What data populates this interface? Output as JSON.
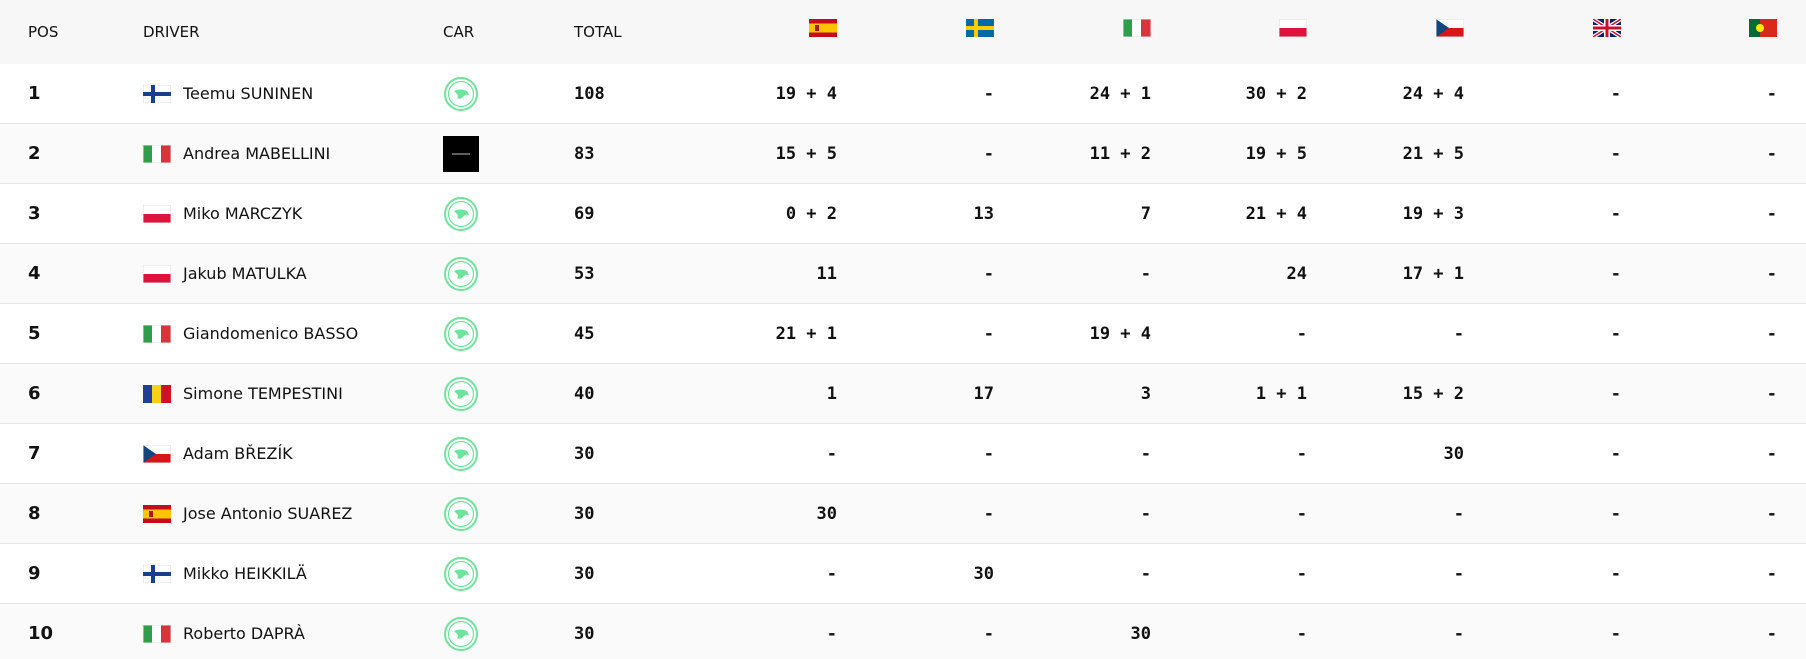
{
  "table": {
    "header": [
      "POS",
      "DRIVER",
      "CAR",
      "TOTAL"
    ],
    "rows": [
      {
        "pos": 1,
        "driver": "Teemu SUNINEN",
        "total": 108,
        "results": [
          "19 + 4",
          "-",
          "24 + 1",
          "30 + 2",
          "24 + 4",
          "-",
          "-"
        ]
      },
      {
        "pos": 2,
        "driver": "Andrea MABELLINI",
        "total": 83,
        "results": [
          "15 + 5",
          "-",
          "11 + 2",
          "19 + 5",
          "21 + 5",
          "-",
          "-"
        ]
      },
      {
        "pos": 3,
        "driver": "Miko MARCZYK",
        "total": 69,
        "results": [
          "0 + 2",
          "13",
          "7",
          "21 + 4",
          "19 + 3",
          "-",
          "-"
        ]
      },
      {
        "pos": 4,
        "driver": "Jakub MATULKA",
        "total": 53,
        "results": [
          "11",
          "-",
          "-",
          "24",
          "17 + 1",
          "-",
          "-"
        ]
      },
      {
        "pos": 5,
        "driver": "Giandomenico BASSO",
        "total": 45,
        "results": [
          "21 + 1",
          "-",
          "19 + 4",
          "-",
          "-",
          "-",
          "-"
        ]
      },
      {
        "pos": 6,
        "driver": "Simone TEMPESTINI",
        "total": 40,
        "results": [
          "1",
          "17",
          "3",
          "1 + 1",
          "15 + 2",
          "-",
          "-"
        ]
      },
      {
        "pos": 7,
        "driver": "Adam BŘEZÍK",
        "total": 30,
        "results": [
          "-",
          "-",
          "-",
          "-",
          "30",
          "-",
          "-"
        ]
      },
      {
        "pos": 8,
        "driver": "Jose Antonio SUAREZ",
        "total": 30,
        "results": [
          "30",
          "-",
          "-",
          "-",
          "-",
          "-",
          "-"
        ]
      },
      {
        "pos": 9,
        "driver": "Mikko HEIKKILÄ",
        "total": 30,
        "results": [
          "-",
          "30",
          "-",
          "-",
          "-",
          "-",
          "-"
        ]
      },
      {
        "pos": 10,
        "driver": "Roberto DAPRÀ",
        "total": 30,
        "results": [
          "-",
          "-",
          "30",
          "-",
          "-",
          "-",
          "-"
        ]
      }
    ]
  }
}
